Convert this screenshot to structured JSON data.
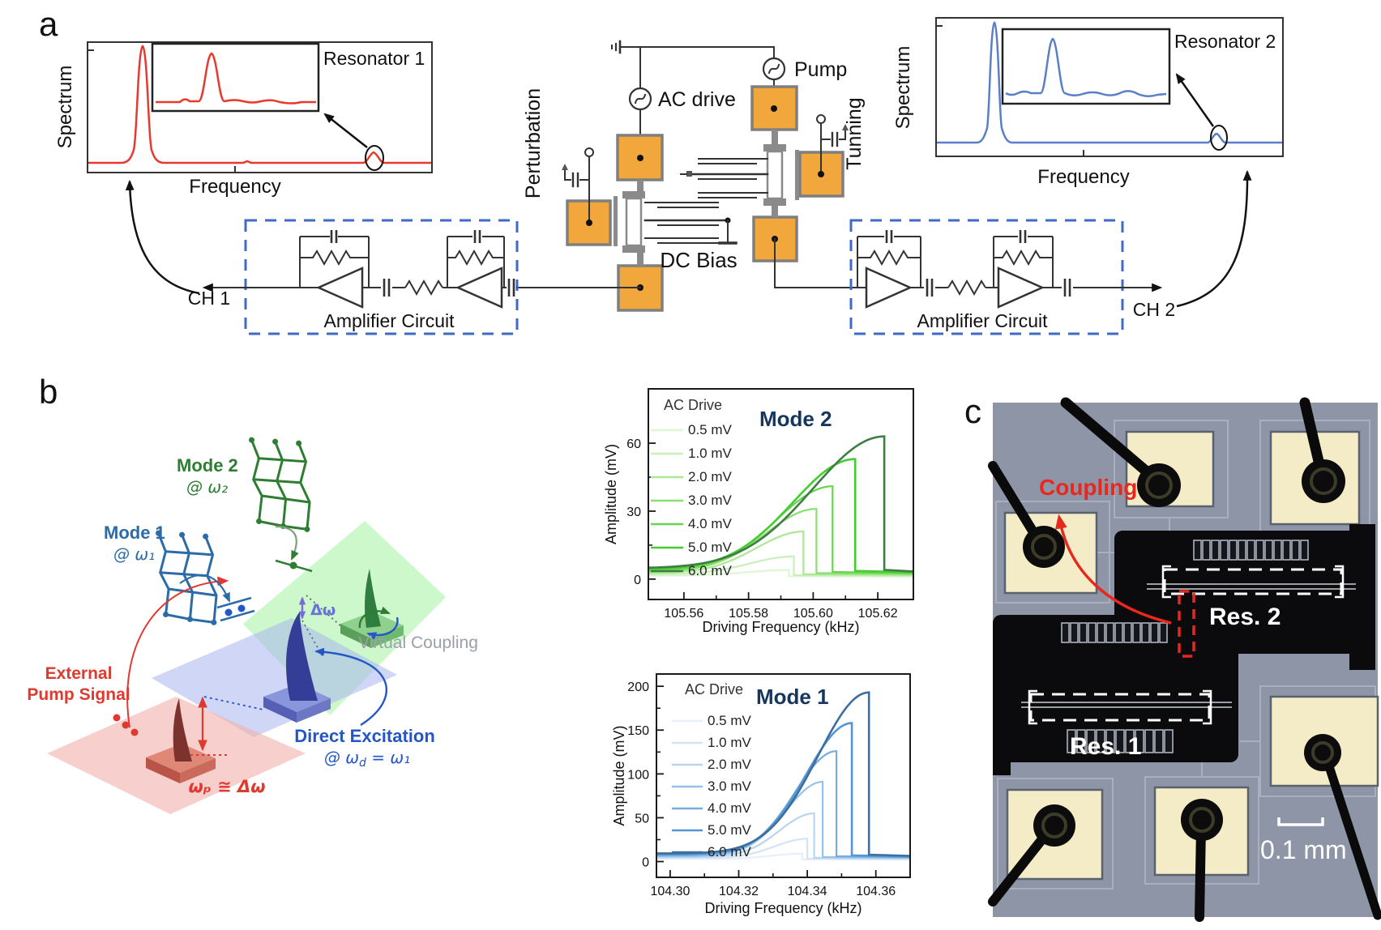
{
  "panel_a": {
    "label": "a",
    "left_plot": {
      "ylabel": "Spectrum",
      "xlabel": "Frequency",
      "inset": "Resonator 1",
      "channel": "CH 1"
    },
    "right_plot": {
      "ylabel": "Spectrum",
      "xlabel": "Frequency",
      "inset": "Resonator 2",
      "channel": "CH 2"
    },
    "schematic": {
      "ac_drive": "AC drive",
      "pump": "Pump",
      "perturbation": "Perturbation",
      "tuning": "Tunning",
      "dc_bias": "DC Bias"
    },
    "amplifier_label_left": "Amplifier Circuit",
    "amplifier_label_right": "Amplifier Circuit",
    "colors": {
      "resonator1": "#e8392f",
      "resonator2": "#5b7fc7",
      "amplifier_box": "#4169c8",
      "pad": "#f2a73d"
    }
  },
  "panel_b": {
    "label": "b",
    "labels": {
      "mode2": "Mode 2",
      "mode2_at": "@ ω₂",
      "mode1": "Mode 1",
      "mode1_at": "@ ω₁",
      "delta_omega": "Δω",
      "virtual_coupling": "Virtual Coupling",
      "external_1": "External",
      "external_2": "Pump Signal",
      "pump_relation": "ωₚ ≅ Δω",
      "direct_1": "Direct Excitation",
      "direct_2_prefix": "@ ω",
      "direct_2_sub": "d",
      "direct_2_rest": " = ω₁"
    }
  },
  "panel_c": {
    "label": "c",
    "coupling": "Coupling",
    "res1": "Res. 1",
    "res2": "Res. 2",
    "scale_bar": "0.1 mm"
  },
  "chart_data": [
    {
      "id": "mode2_response",
      "type": "line",
      "title": "Mode 2",
      "legend_title": "AC Drive",
      "legend_position": "top-left-inside",
      "xlabel": "Driving Frequency (kHz)",
      "ylabel": "Amplitude (mV)",
      "xlim": [
        105.549,
        105.631
      ],
      "ylim": [
        -9,
        84
      ],
      "grid": false,
      "xticks": [
        {
          "v": 105.56,
          "label": "105.56"
        },
        {
          "v": 105.58,
          "label": "105.58"
        },
        {
          "v": 105.6,
          "label": "105.60"
        },
        {
          "v": 105.62,
          "label": "105.62"
        }
      ],
      "yticks": [
        {
          "v": 0,
          "label": "0"
        },
        {
          "v": 30,
          "label": "30"
        },
        {
          "v": 60,
          "label": "60"
        }
      ],
      "onset_kHz": 105.548,
      "series": [
        {
          "name": "0.5 mV",
          "color": "#ddf6d4",
          "peak_mV": 4,
          "jump_kHz": 105.5925
        },
        {
          "name": "1.0 mV",
          "color": "#c8f0b8",
          "peak_mV": 10,
          "jump_kHz": 105.594
        },
        {
          "name": "2.0 mV",
          "color": "#abe794",
          "peak_mV": 21,
          "jump_kHz": 105.597
        },
        {
          "name": "3.0 mV",
          "color": "#8bdf70",
          "peak_mV": 31,
          "jump_kHz": 105.601
        },
        {
          "name": "4.0 mV",
          "color": "#68d64c",
          "peak_mV": 41,
          "jump_kHz": 105.606
        },
        {
          "name": "5.0 mV",
          "color": "#45cc30",
          "peak_mV": 53,
          "jump_kHz": 105.613
        },
        {
          "name": "6.0 mV",
          "color": "#3f7d44",
          "peak_mV": 63,
          "jump_kHz": 105.622
        }
      ]
    },
    {
      "id": "mode1_response",
      "type": "line",
      "title": "Mode 1",
      "legend_title": "AC Drive",
      "legend_position": "top-left-inside",
      "xlabel": "Driving Frequency (kHz)",
      "ylabel": "Amplitude (mV)",
      "xlim": [
        104.296,
        104.37
      ],
      "ylim": [
        -18,
        214
      ],
      "grid": false,
      "xticks": [
        {
          "v": 104.3,
          "label": "104.30"
        },
        {
          "v": 104.32,
          "label": "104.32"
        },
        {
          "v": 104.34,
          "label": "104.34"
        },
        {
          "v": 104.36,
          "label": "104.36"
        }
      ],
      "yticks": [
        {
          "v": 0,
          "label": "0"
        },
        {
          "v": 50,
          "label": "50"
        },
        {
          "v": 100,
          "label": "100"
        },
        {
          "v": 150,
          "label": "150"
        },
        {
          "v": 200,
          "label": "200"
        }
      ],
      "onset_kHz": 104.308,
      "series": [
        {
          "name": "0.5 mV",
          "color": "#e6f0fa",
          "peak_mV": 9,
          "jump_kHz": 104.3385
        },
        {
          "name": "1.0 mV",
          "color": "#d2e4f5",
          "peak_mV": 26,
          "jump_kHz": 104.34
        },
        {
          "name": "2.0 mV",
          "color": "#b7d5ef",
          "peak_mV": 55,
          "jump_kHz": 104.342
        },
        {
          "name": "3.0 mV",
          "color": "#97c2e8",
          "peak_mV": 91,
          "jump_kHz": 104.3445
        },
        {
          "name": "4.0 mV",
          "color": "#74ade0",
          "peak_mV": 126,
          "jump_kHz": 104.3485
        },
        {
          "name": "5.0 mV",
          "color": "#5596d4",
          "peak_mV": 158,
          "jump_kHz": 104.353
        },
        {
          "name": "6.0 mV",
          "color": "#3d6e9e",
          "peak_mV": 193,
          "jump_kHz": 104.358
        }
      ]
    }
  ]
}
